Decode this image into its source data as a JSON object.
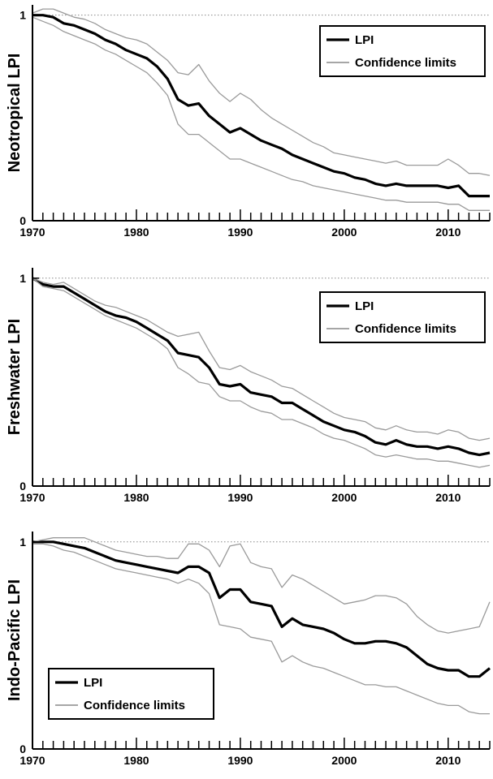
{
  "chart_data": [
    {
      "type": "line",
      "ylabel": "Neotropical LPI",
      "xlim": [
        1970,
        2014
      ],
      "ylim": [
        0,
        1.05
      ],
      "y_ticks": [
        0,
        1
      ],
      "x_ticks": [
        1970,
        1980,
        1990,
        2000,
        2010
      ],
      "x_tick_labels": [
        "1970",
        "1980",
        "1990",
        "2000",
        "2010"
      ],
      "reference_line": 1,
      "legend": {
        "position": "top-right",
        "items": [
          "LPI",
          "Confidence limits"
        ]
      },
      "x": [
        1970,
        1971,
        1972,
        1973,
        1974,
        1975,
        1976,
        1977,
        1978,
        1979,
        1980,
        1981,
        1982,
        1983,
        1984,
        1985,
        1986,
        1987,
        1988,
        1989,
        1990,
        1991,
        1992,
        1993,
        1994,
        1995,
        1996,
        1997,
        1998,
        1999,
        2000,
        2001,
        2002,
        2003,
        2004,
        2005,
        2006,
        2007,
        2008,
        2009,
        2010,
        2011,
        2012,
        2013,
        2014
      ],
      "series": [
        {
          "name": "LPI",
          "values": [
            1.0,
            1.0,
            0.99,
            0.96,
            0.95,
            0.93,
            0.91,
            0.88,
            0.86,
            0.83,
            0.81,
            0.79,
            0.75,
            0.69,
            0.59,
            0.56,
            0.57,
            0.51,
            0.47,
            0.43,
            0.45,
            0.42,
            0.39,
            0.37,
            0.35,
            0.32,
            0.3,
            0.28,
            0.26,
            0.24,
            0.23,
            0.21,
            0.2,
            0.18,
            0.17,
            0.18,
            0.17,
            0.17,
            0.17,
            0.17,
            0.16,
            0.17,
            0.12,
            0.12,
            0.12
          ]
        },
        {
          "name": "Confidence limits",
          "values": [
            1.01,
            1.03,
            1.03,
            1.01,
            0.99,
            0.98,
            0.96,
            0.93,
            0.91,
            0.89,
            0.88,
            0.86,
            0.82,
            0.78,
            0.72,
            0.71,
            0.76,
            0.68,
            0.62,
            0.58,
            0.62,
            0.59,
            0.54,
            0.5,
            0.47,
            0.44,
            0.41,
            0.38,
            0.36,
            0.33,
            0.32,
            0.31,
            0.3,
            0.29,
            0.28,
            0.29,
            0.27,
            0.27,
            0.27,
            0.27,
            0.3,
            0.27,
            0.23,
            0.23,
            0.22
          ]
        },
        {
          "values": [
            0.99,
            0.97,
            0.95,
            0.92,
            0.9,
            0.88,
            0.86,
            0.83,
            0.81,
            0.78,
            0.75,
            0.72,
            0.67,
            0.61,
            0.47,
            0.42,
            0.42,
            0.38,
            0.34,
            0.3,
            0.3,
            0.28,
            0.26,
            0.24,
            0.22,
            0.2,
            0.19,
            0.17,
            0.16,
            0.15,
            0.14,
            0.13,
            0.12,
            0.11,
            0.1,
            0.1,
            0.09,
            0.09,
            0.09,
            0.09,
            0.08,
            0.08,
            0.05,
            0.05,
            0.05
          ]
        }
      ]
    },
    {
      "type": "line",
      "ylabel": "Freshwater LPI",
      "xlim": [
        1970,
        2014
      ],
      "ylim": [
        0,
        1.05
      ],
      "y_ticks": [
        0,
        1
      ],
      "x_ticks": [
        1970,
        1980,
        1990,
        2000,
        2010
      ],
      "x_tick_labels": [
        "1970",
        "1980",
        "1990",
        "2000",
        "2010"
      ],
      "reference_line": 1,
      "legend": {
        "position": "top-right",
        "items": [
          "LPI",
          "Confidence limits"
        ]
      },
      "x": [
        1970,
        1971,
        1972,
        1973,
        1974,
        1975,
        1976,
        1977,
        1978,
        1979,
        1980,
        1981,
        1982,
        1983,
        1984,
        1985,
        1986,
        1987,
        1988,
        1989,
        1990,
        1991,
        1992,
        1993,
        1994,
        1995,
        1996,
        1997,
        1998,
        1999,
        2000,
        2001,
        2002,
        2003,
        2004,
        2005,
        2006,
        2007,
        2008,
        2009,
        2010,
        2011,
        2012,
        2013,
        2014
      ],
      "series": [
        {
          "name": "LPI",
          "values": [
            1.0,
            0.97,
            0.96,
            0.96,
            0.93,
            0.9,
            0.87,
            0.84,
            0.82,
            0.81,
            0.79,
            0.76,
            0.73,
            0.7,
            0.64,
            0.63,
            0.62,
            0.57,
            0.49,
            0.48,
            0.49,
            0.45,
            0.44,
            0.43,
            0.4,
            0.4,
            0.37,
            0.34,
            0.31,
            0.29,
            0.27,
            0.26,
            0.24,
            0.21,
            0.2,
            0.22,
            0.2,
            0.19,
            0.19,
            0.18,
            0.19,
            0.18,
            0.16,
            0.15,
            0.16
          ]
        },
        {
          "name": "Confidence limits",
          "values": [
            1.0,
            0.98,
            0.97,
            0.98,
            0.95,
            0.92,
            0.89,
            0.87,
            0.86,
            0.84,
            0.82,
            0.8,
            0.77,
            0.74,
            0.72,
            0.73,
            0.74,
            0.65,
            0.57,
            0.56,
            0.58,
            0.55,
            0.53,
            0.51,
            0.48,
            0.47,
            0.44,
            0.41,
            0.38,
            0.35,
            0.33,
            0.32,
            0.31,
            0.28,
            0.27,
            0.29,
            0.27,
            0.26,
            0.26,
            0.25,
            0.27,
            0.26,
            0.23,
            0.22,
            0.23
          ]
        },
        {
          "values": [
            1.0,
            0.96,
            0.95,
            0.94,
            0.91,
            0.88,
            0.85,
            0.82,
            0.8,
            0.78,
            0.76,
            0.73,
            0.7,
            0.66,
            0.57,
            0.54,
            0.5,
            0.49,
            0.43,
            0.41,
            0.41,
            0.38,
            0.36,
            0.35,
            0.32,
            0.32,
            0.3,
            0.28,
            0.25,
            0.23,
            0.22,
            0.2,
            0.18,
            0.15,
            0.14,
            0.15,
            0.14,
            0.13,
            0.13,
            0.12,
            0.12,
            0.11,
            0.1,
            0.09,
            0.1
          ]
        }
      ]
    },
    {
      "type": "line",
      "ylabel": "Indo-Pacific LPI",
      "xlim": [
        1970,
        2014
      ],
      "ylim": [
        0,
        1.05
      ],
      "y_ticks": [
        0,
        1
      ],
      "x_ticks": [
        1970,
        1980,
        1990,
        2000,
        2010
      ],
      "x_tick_labels": [
        "1970",
        "1980",
        "1990",
        "2000",
        "2010"
      ],
      "reference_line": 1,
      "legend": {
        "position": "bottom-left",
        "items": [
          "LPI",
          "Confidence limits"
        ]
      },
      "x": [
        1970,
        1971,
        1972,
        1973,
        1974,
        1975,
        1976,
        1977,
        1978,
        1979,
        1980,
        1981,
        1982,
        1983,
        1984,
        1985,
        1986,
        1987,
        1988,
        1989,
        1990,
        1991,
        1992,
        1993,
        1994,
        1995,
        1996,
        1997,
        1998,
        1999,
        2000,
        2001,
        2002,
        2003,
        2004,
        2005,
        2006,
        2007,
        2008,
        2009,
        2010,
        2011,
        2012,
        2013,
        2014
      ],
      "series": [
        {
          "name": "LPI",
          "values": [
            1.0,
            1.0,
            1.0,
            0.99,
            0.98,
            0.97,
            0.95,
            0.93,
            0.91,
            0.9,
            0.89,
            0.88,
            0.87,
            0.86,
            0.85,
            0.88,
            0.88,
            0.85,
            0.73,
            0.77,
            0.77,
            0.71,
            0.7,
            0.69,
            0.59,
            0.63,
            0.6,
            0.59,
            0.58,
            0.56,
            0.53,
            0.51,
            0.51,
            0.52,
            0.52,
            0.51,
            0.49,
            0.45,
            0.41,
            0.39,
            0.38,
            0.38,
            0.35,
            0.35,
            0.39
          ]
        },
        {
          "name": "Confidence limits",
          "values": [
            1.0,
            1.01,
            1.02,
            1.02,
            1.02,
            1.02,
            1.0,
            0.98,
            0.96,
            0.95,
            0.94,
            0.93,
            0.93,
            0.92,
            0.92,
            0.99,
            0.99,
            0.96,
            0.88,
            0.98,
            0.99,
            0.9,
            0.88,
            0.87,
            0.78,
            0.84,
            0.82,
            0.79,
            0.76,
            0.73,
            0.7,
            0.71,
            0.72,
            0.74,
            0.74,
            0.73,
            0.7,
            0.64,
            0.6,
            0.57,
            0.56,
            0.57,
            0.58,
            0.59,
            0.71
          ]
        },
        {
          "values": [
            0.99,
            0.99,
            0.98,
            0.96,
            0.95,
            0.93,
            0.91,
            0.89,
            0.87,
            0.86,
            0.85,
            0.84,
            0.83,
            0.82,
            0.8,
            0.82,
            0.8,
            0.75,
            0.6,
            0.59,
            0.58,
            0.54,
            0.53,
            0.52,
            0.42,
            0.45,
            0.42,
            0.4,
            0.39,
            0.37,
            0.35,
            0.33,
            0.31,
            0.31,
            0.3,
            0.3,
            0.28,
            0.26,
            0.24,
            0.22,
            0.21,
            0.21,
            0.18,
            0.17,
            0.17
          ]
        }
      ]
    }
  ]
}
